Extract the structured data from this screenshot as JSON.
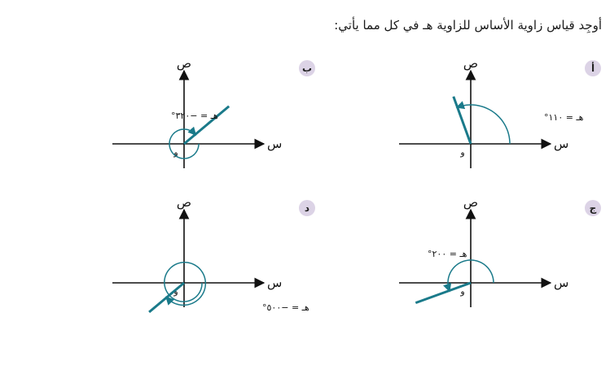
{
  "instruction": "أوجِد قياس زاوية الأساس للزاوية هـ في كل مما يأتي:",
  "axes": {
    "x_label": "س",
    "y_label": "ص",
    "origin_label": "و"
  },
  "colors": {
    "ray": "#1a7a8a",
    "badge": "#dcd3e6"
  },
  "figures": [
    {
      "id": "a",
      "badge": "أ",
      "angle_deg": 110,
      "angle_text": "هـ = ١١٠°"
    },
    {
      "id": "b",
      "badge": "ب",
      "angle_deg": -320,
      "angle_text": "هـ = −٣٢٠°"
    },
    {
      "id": "c",
      "badge": "ج",
      "angle_deg": 200,
      "angle_text": "هـ = ٢٠٠°"
    },
    {
      "id": "d",
      "badge": "د",
      "angle_deg": -500,
      "angle_text": "هـ = −٥٠٠°"
    }
  ]
}
